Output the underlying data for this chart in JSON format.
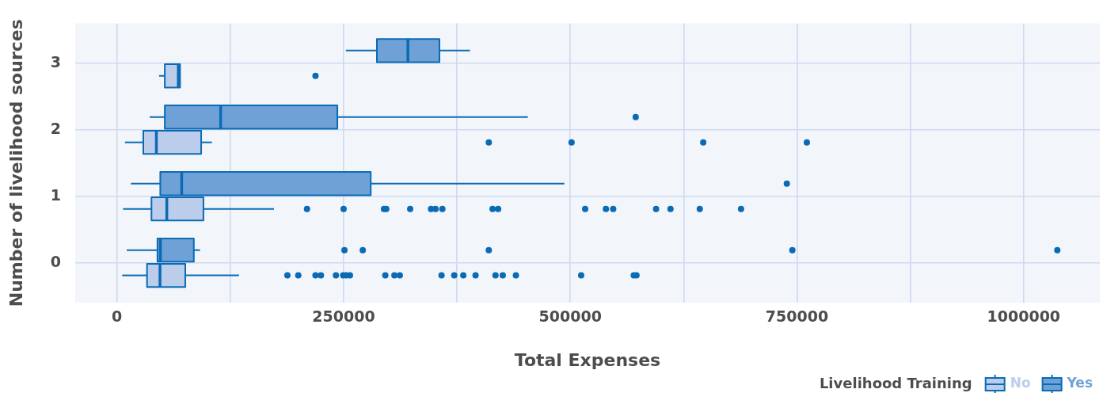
{
  "chart_data": {
    "type": "box",
    "orientation": "horizontal",
    "xlabel": "Total Expenses",
    "ylabel": "Number of livelihood sources",
    "legend_title": "Livelihood Training",
    "legend": "bottom right",
    "grid": true,
    "marker": "circle",
    "categories": [
      "3",
      "2",
      "1",
      "0"
    ],
    "xlim": [
      -46000,
      1084000
    ],
    "xticks": [
      0,
      {
        "value": 125000,
        "label": null
      },
      250000,
      {
        "value": 375000,
        "label": null
      },
      500000,
      {
        "value": 625000,
        "label": null
      },
      750000,
      {
        "value": 875000,
        "label": null
      },
      1000000
    ],
    "series": [
      {
        "name": "No",
        "color": "#bccdeb",
        "boxes": [
          {
            "low": 46500,
            "q1": 52800,
            "median": 67700,
            "q3": 69600,
            "high": 69600,
            "outliers": [
              219000
            ]
          },
          {
            "low": 8900,
            "q1": 29100,
            "median": 43500,
            "q3": 92900,
            "high": 104700,
            "outliers": [
              410100,
              501400,
              646600,
              760900
            ]
          },
          {
            "low": 6700,
            "q1": 38100,
            "median": 55000,
            "q3": 95400,
            "high": 173200,
            "outliers": [
              209600,
              250000,
              294500,
              297000,
              323400,
              346400,
              351400,
              358900,
              414300,
              420400,
              516400,
              539300,
              547300,
              594600,
              610500,
              642800,
              688300
            ]
          },
          {
            "low": 5800,
            "q1": 33200,
            "median": 47500,
            "q3": 75400,
            "high": 134600,
            "outliers": [
              188000,
              200000,
              219000,
              225000,
              241500,
              249500,
              253000,
              257000,
              296000,
              306000,
              312000,
              358000,
              372000,
              382000,
              395500,
              417500,
              425500,
              440000,
              512000,
              570000,
              573000
            ]
          }
        ]
      },
      {
        "name": "Yes",
        "color": "#6fa1d6",
        "boxes": [
          {
            "low": 252500,
            "q1": 286700,
            "median": 320900,
            "q3": 355700,
            "high": 389300
          },
          {
            "low": 36200,
            "q1": 52800,
            "median": 114400,
            "q3": 243100,
            "high": 453200,
            "outliers": [
              572100
            ]
          },
          {
            "low": 15400,
            "q1": 47800,
            "median": 71400,
            "q3": 279900,
            "high": 493400,
            "outliers": [
              738800
            ]
          },
          {
            "low": 10800,
            "q1": 44700,
            "median": 48000,
            "q3": 84800,
            "high": 91600,
            "outliers": [
              250900,
              271100,
              410100,
              744900,
              1037100
            ]
          }
        ]
      }
    ]
  }
}
